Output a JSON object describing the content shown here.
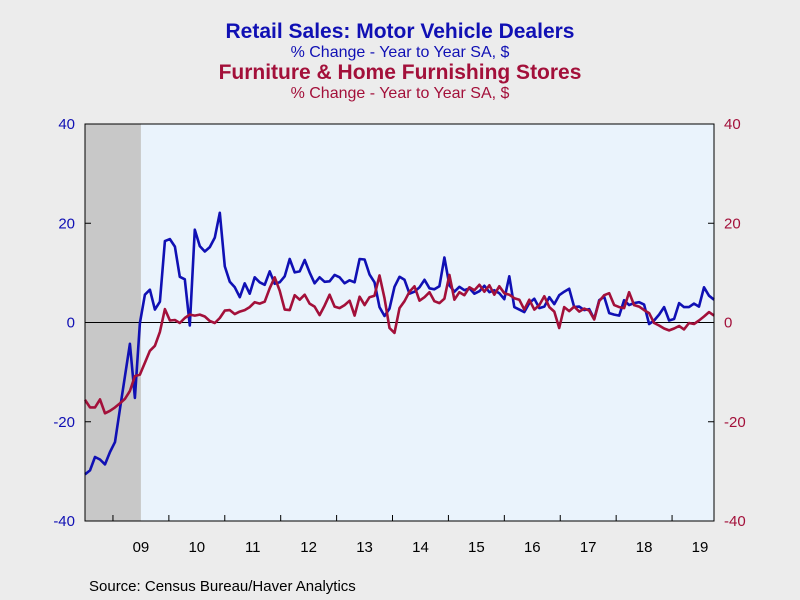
{
  "colors": {
    "series1": "#1010b4",
    "series2": "#a3103a",
    "plot_bg": "#eaf3fc",
    "recession": "#c8c8c8",
    "page_bg": "#ececec"
  },
  "titles": {
    "title1": "Retail Sales: Motor Vehicle Dealers",
    "subtitle1": "% Change - Year to Year    SA, $",
    "title2": "Furniture & Home Furnishing Stores",
    "subtitle2": "% Change - Year to Year    SA, $"
  },
  "source": "Source:  Census Bureau/Haver Analytics",
  "chart_data": {
    "type": "line",
    "x_start": 2008.5,
    "x_end": 2019.75,
    "ylim": [
      -40,
      40
    ],
    "yticks": [
      -40,
      -20,
      0,
      20,
      40
    ],
    "ytick_labels_left": [
      "-40",
      "-20",
      "0",
      "20",
      "40"
    ],
    "ytick_labels_right": [
      "-40",
      "-20",
      "0",
      "20",
      "40"
    ],
    "xtick_labels": [
      "09",
      "10",
      "11",
      "12",
      "13",
      "14",
      "15",
      "16",
      "17",
      "18",
      "19"
    ],
    "shaded_periods": [
      [
        2008.5,
        2009.5
      ]
    ],
    "series": [
      {
        "name": "Retail Sales: Motor Vehicle Dealers",
        "color_key": "series1",
        "values": [
          -30.6,
          -29.8,
          -27.1,
          -27.6,
          -28.6,
          -26.1,
          -24.1,
          -17.5,
          -10.9,
          -4.3,
          -15.2,
          -0.1,
          5.6,
          6.6,
          2.6,
          4.2,
          16.4,
          16.8,
          15.3,
          9.2,
          8.7,
          -0.6,
          18.7,
          15.4,
          14.3,
          15.2,
          17.1,
          22.1,
          11.3,
          8.2,
          7.1,
          5.1,
          7.9,
          5.8,
          9.1,
          8.1,
          7.6,
          10.3,
          7.8,
          8.1,
          9.3,
          12.8,
          10.1,
          10.3,
          12.6,
          10.1,
          7.9,
          9.1,
          8.2,
          8.3,
          9.6,
          9.1,
          7.9,
          8.5,
          8.1,
          12.8,
          12.7,
          9.7,
          8.1,
          3.1,
          1.3,
          2.8,
          7.2,
          9.2,
          8.6,
          5.8,
          6.2,
          7.1,
          8.6,
          6.9,
          6.7,
          7.3,
          13.1,
          7.5,
          6.2,
          7.2,
          6.5,
          6.9,
          5.8,
          6.3,
          7.4,
          6.1,
          6.5,
          5.9,
          4.7,
          9.3,
          3.1,
          2.6,
          2.1,
          3.9,
          4.8,
          2.9,
          3.2,
          5.1,
          3.7,
          5.5,
          6.2,
          6.8,
          3.1,
          3.2,
          2.5,
          2.7,
          0.7,
          4.5,
          5.2,
          1.9,
          1.6,
          1.4,
          4.5,
          3.5,
          3.9,
          4.1,
          3.6,
          -0.3,
          0.4,
          1.6,
          3.1,
          0.4,
          0.7,
          3.9,
          3.1,
          3.1,
          3.8,
          3.2,
          7.1,
          5.4,
          4.6
        ]
      },
      {
        "name": "Furniture & Home Furnishing Stores",
        "color_key": "series2",
        "values": [
          -15.6,
          -17.1,
          -17.1,
          -15.5,
          -18.3,
          -17.8,
          -17.1,
          -16.3,
          -15.4,
          -13.8,
          -10.8,
          -10.5,
          -8.1,
          -5.7,
          -4.7,
          -1.9,
          2.7,
          0.4,
          0.5,
          -0.1,
          0.9,
          1.6,
          1.4,
          1.6,
          1.2,
          0.3,
          -0.1,
          0.9,
          2.4,
          2.5,
          1.7,
          2.2,
          2.5,
          3.1,
          4.1,
          3.8,
          4.2,
          6.9,
          9.1,
          6.4,
          2.6,
          2.5,
          5.5,
          4.6,
          5.6,
          3.8,
          3.2,
          1.5,
          3.4,
          5.6,
          3.2,
          2.9,
          3.5,
          4.4,
          1.4,
          5.2,
          3.5,
          5.1,
          5.4,
          9.5,
          4.9,
          -1.1,
          -2.1,
          2.9,
          4.3,
          6.2,
          7.3,
          4.4,
          5.1,
          6.1,
          4.3,
          3.9,
          4.8,
          9.6,
          4.6,
          6.1,
          5.5,
          7.1,
          6.5,
          7.6,
          6.2,
          7.5,
          5.6,
          7.3,
          5.9,
          5.6,
          4.9,
          4.6,
          2.6,
          4.6,
          2.6,
          3.5,
          5.3,
          3.1,
          2.2,
          -1.1,
          3.1,
          2.3,
          3.2,
          2.2,
          2.8,
          2.4,
          0.6,
          4.3,
          5.5,
          5.9,
          3.5,
          3.1,
          2.9,
          6.1,
          3.5,
          3.2,
          2.5,
          1.9,
          -0.1,
          -0.6,
          -1.2,
          -1.6,
          -1.2,
          -0.7,
          -1.4,
          -0.1,
          -0.3,
          0.4,
          1.2,
          2.1,
          1.4
        ]
      }
    ]
  }
}
